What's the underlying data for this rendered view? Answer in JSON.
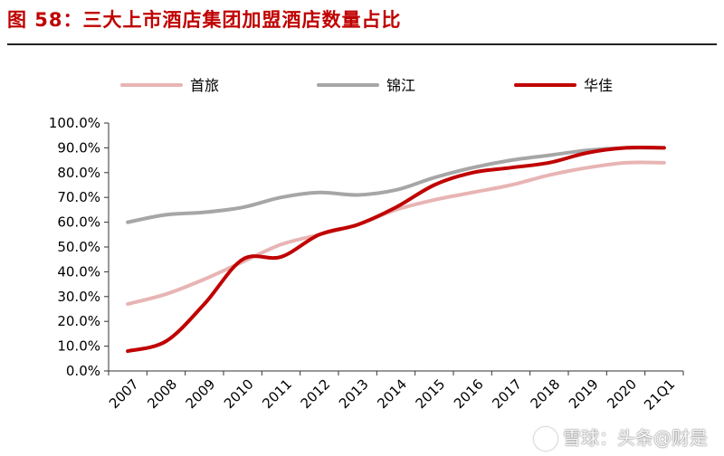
{
  "title": "图 58：三大上市酒店集团加盟酒店数量占比",
  "watermark": "雪球：头条@财是",
  "chart_data": {
    "type": "line",
    "categories": [
      "2007",
      "2008",
      "2009",
      "2010",
      "2011",
      "2012",
      "2013",
      "2014",
      "2015",
      "2016",
      "2017",
      "2018",
      "2019",
      "2020",
      "21Q1"
    ],
    "y_ticks": [
      "0.0%",
      "10.0%",
      "20.0%",
      "30.0%",
      "40.0%",
      "50.0%",
      "60.0%",
      "70.0%",
      "80.0%",
      "90.0%",
      "100.0%"
    ],
    "ylim": [
      0,
      100
    ],
    "grid": false,
    "legend_position": "top",
    "series": [
      {
        "name": "首旅",
        "color": "#e8b4b4",
        "values": [
          27,
          31,
          37,
          44,
          51,
          55,
          59,
          65,
          69,
          72,
          75,
          79,
          82,
          84,
          84
        ]
      },
      {
        "name": "锦江",
        "color": "#a6a6a6",
        "values": [
          60,
          63,
          64,
          66,
          70,
          72,
          71,
          73,
          78,
          82,
          85,
          87,
          89,
          90,
          90
        ]
      },
      {
        "name": "华佳",
        "color": "#c00000",
        "values": [
          8,
          12,
          27,
          45,
          46,
          55,
          59,
          66,
          75,
          80,
          82,
          84,
          88,
          90,
          90
        ]
      }
    ]
  }
}
